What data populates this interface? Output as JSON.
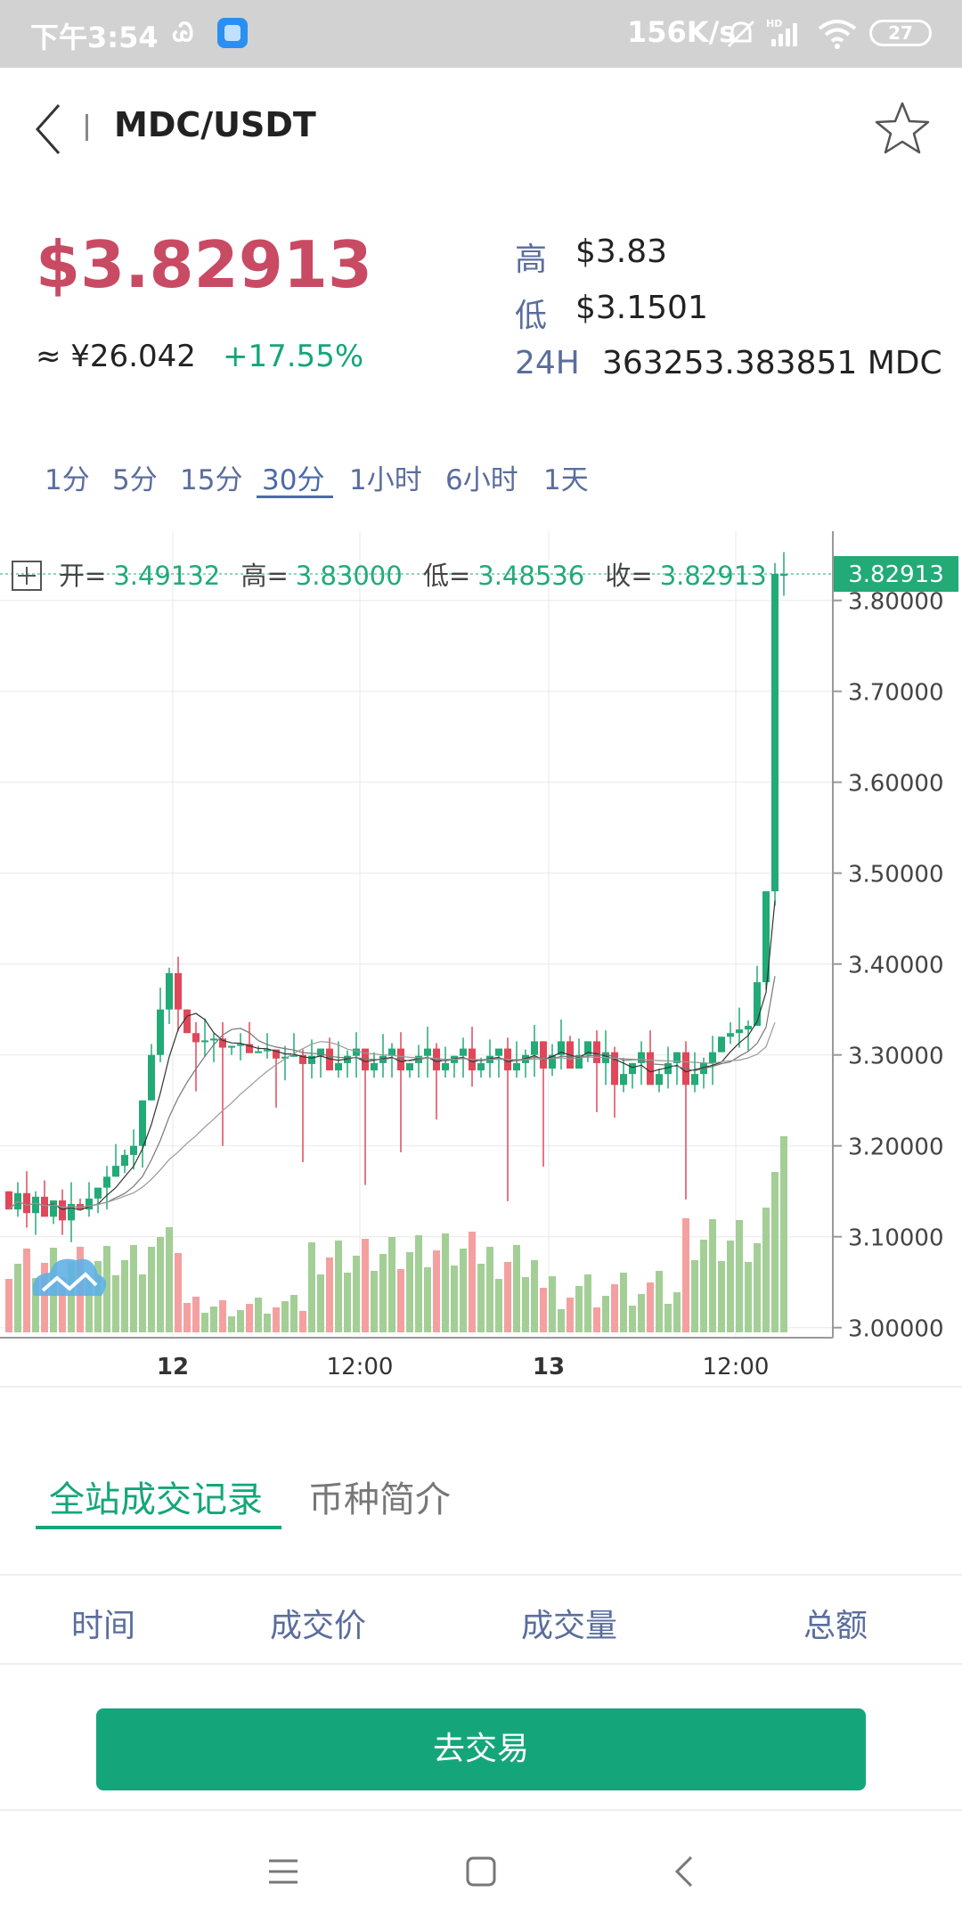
{
  "status_bar": {
    "time": "下午3:54",
    "left_icon": "Ꮚ",
    "speed": "156K/s",
    "battery": "27",
    "icons": [
      "mute-icon",
      "signal-icon",
      "wifi-icon",
      "battery-icon"
    ]
  },
  "header": {
    "title": "MDC/USDT"
  },
  "ticker": {
    "price": "$3.82913",
    "cny": "≈ ¥26.042",
    "change": "+17.55%",
    "high_label": "高",
    "high": "$3.83",
    "low_label": "低",
    "low": "$3.1501",
    "vol_label": "24H",
    "vol": "363253.383851 MDC"
  },
  "intervals": [
    {
      "label": "1分"
    },
    {
      "label": "5分"
    },
    {
      "label": "15分"
    },
    {
      "label": "30分",
      "active": true
    },
    {
      "label": "1小时"
    },
    {
      "label": "6小时"
    },
    {
      "label": "1天"
    }
  ],
  "chart_data": {
    "type": "candlestick",
    "ohlc_legend": {
      "open_label": "开=",
      "open": "3.49132",
      "high_label": "高=",
      "high": "3.83000",
      "low_label": "低=",
      "low": "3.48536",
      "close_label": "收=",
      "close": "3.82913"
    },
    "last_price": "3.82913",
    "y_ticks": [
      "3.80000",
      "3.70000",
      "3.60000",
      "3.50000",
      "3.40000",
      "3.30000",
      "3.20000",
      "3.10000",
      "3.00000"
    ],
    "x_ticks": [
      "12",
      "12:00",
      "13",
      "12:00"
    ],
    "ylim": [
      3.0,
      3.82913
    ],
    "colors": {
      "up": "#22aa77",
      "down": "#e0485a",
      "vol_up": "#a3cf96",
      "vol_down": "#f5a0a0",
      "grid": "#e8e8e8"
    }
  },
  "tabs": {
    "trades": "全站成交记录",
    "intro": "币种简介"
  },
  "table": {
    "columns": [
      "时间",
      "成交价",
      "成交量",
      "总额"
    ]
  },
  "trade_button": "去交易"
}
